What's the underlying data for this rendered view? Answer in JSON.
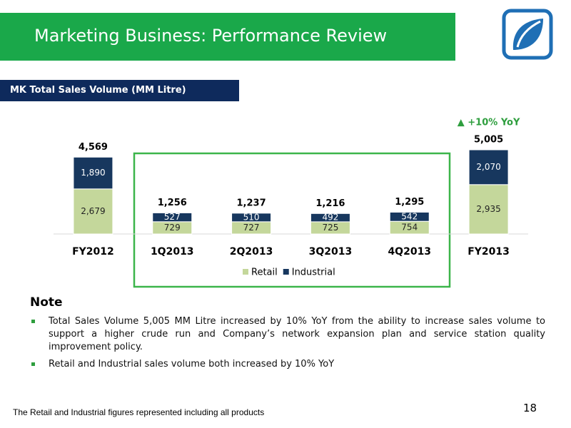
{
  "header": {
    "title": "Marketing Business: Performance Review",
    "subtitle": "MK Total Sales Volume (MM Litre)"
  },
  "chart_data": {
    "type": "stacked_bar",
    "categories": [
      "FY2012",
      "1Q2013",
      "2Q2013",
      "3Q2013",
      "4Q2013",
      "FY2013"
    ],
    "series": [
      {
        "name": "Retail",
        "color": "#c4d79b",
        "values": [
          2679,
          729,
          727,
          725,
          754,
          2935
        ],
        "value_labels": [
          "2,679",
          "729",
          "727",
          "725",
          "754",
          "2,935"
        ]
      },
      {
        "name": "Industrial",
        "color": "#17375e",
        "values": [
          1890,
          527,
          510,
          492,
          542,
          2070
        ],
        "value_labels": [
          "1,890",
          "527",
          "510",
          "492",
          "542",
          "2,070"
        ]
      }
    ],
    "totals": [
      4569,
      1256,
      1237,
      1216,
      1295,
      5005
    ],
    "total_labels": [
      "4,569",
      "1,256",
      "1,237",
      "1,216",
      "1,295",
      "5,005"
    ],
    "annotation": "▲ +10% YoY"
  },
  "note": {
    "heading": "Note",
    "bullets": [
      "Total Sales Volume 5,005 MM Litre increased by 10% YoY from the ability to increase sales volume to support a higher crude run and Company’s network expansion plan and service station quality improvement policy.",
      "Retail and Industrial sales volume both increased by 10% YoY"
    ]
  },
  "footer": {
    "text": "The Retail and Industrial figures represented including all products",
    "page": "18"
  }
}
